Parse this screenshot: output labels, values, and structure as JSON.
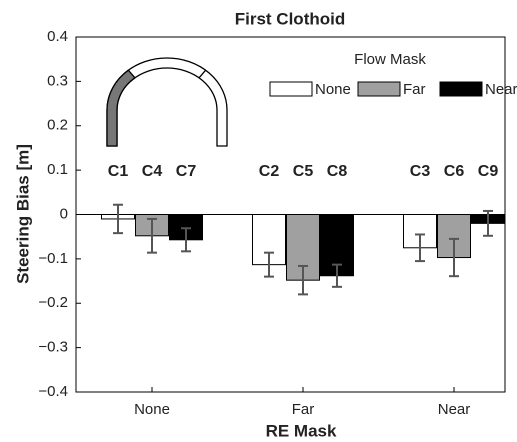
{
  "chart_data": {
    "type": "bar",
    "title": "First Clothoid",
    "x_label": "RE Mask",
    "y_label": "Steering Bias [m]",
    "categories": [
      "None",
      "Far",
      "Near"
    ],
    "legend_title": "Flow Mask",
    "legend": "upper right",
    "series": [
      {
        "name": "None",
        "color": "#ffffff",
        "values": [
          -0.01,
          -0.113,
          -0.075
        ],
        "errors": [
          0.032,
          0.027,
          0.03
        ],
        "labels": [
          "C1",
          "C2",
          "C3"
        ]
      },
      {
        "name": "Far",
        "color": "#a0a0a0",
        "values": [
          -0.048,
          -0.148,
          -0.097
        ],
        "errors": [
          0.038,
          0.032,
          0.042
        ],
        "labels": [
          "C4",
          "C5",
          "C6"
        ]
      },
      {
        "name": "Near",
        "color": "#000000",
        "values": [
          -0.057,
          -0.138,
          -0.02
        ],
        "errors": [
          0.026,
          0.025,
          0.028
        ],
        "labels": [
          "C7",
          "C8",
          "C9"
        ]
      }
    ],
    "ylim": [
      -0.4,
      0.4
    ],
    "yticks": [
      {
        "value": -0.4,
        "label": "−0.4"
      },
      {
        "value": -0.3,
        "label": "−0.3"
      },
      {
        "value": -0.2,
        "label": "−0.2"
      },
      {
        "value": -0.1,
        "label": "−0.1"
      },
      0,
      0.1,
      0.2,
      0.3,
      0.4
    ]
  }
}
